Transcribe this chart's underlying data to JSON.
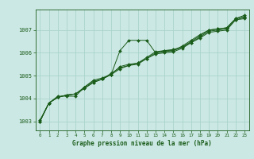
{
  "title": "Graphe pression niveau de la mer (hPa)",
  "bg_color": "#cce8e4",
  "grid_color": "#aad4cc",
  "line_color": "#1a5c1a",
  "marker_color": "#1a5c1a",
  "xlim": [
    -0.5,
    23.5
  ],
  "ylim": [
    1002.6,
    1007.9
  ],
  "yticks": [
    1003,
    1004,
    1005,
    1006,
    1007
  ],
  "xticks": [
    0,
    1,
    2,
    3,
    4,
    5,
    6,
    7,
    8,
    9,
    10,
    11,
    12,
    13,
    14,
    15,
    16,
    17,
    18,
    19,
    20,
    21,
    22,
    23
  ],
  "series": [
    [
      1003.0,
      1003.8,
      1004.1,
      1004.1,
      1004.1,
      1004.5,
      1004.8,
      1004.9,
      1005.05,
      1006.1,
      1006.55,
      1006.55,
      1006.55,
      1006.0,
      1006.1,
      1006.1,
      1006.3,
      1006.55,
      1006.8,
      1007.0,
      1007.05,
      1007.1,
      1007.5,
      1007.65
    ],
    [
      1003.0,
      1003.8,
      1004.05,
      1004.15,
      1004.2,
      1004.5,
      1004.75,
      1004.85,
      1005.05,
      1005.4,
      1005.5,
      1005.55,
      1005.8,
      1006.05,
      1006.1,
      1006.15,
      1006.25,
      1006.5,
      1006.75,
      1007.0,
      1007.05,
      1007.1,
      1007.5,
      1007.6
    ],
    [
      1003.0,
      1003.8,
      1004.05,
      1004.15,
      1004.2,
      1004.45,
      1004.7,
      1004.85,
      1005.1,
      1005.35,
      1005.45,
      1005.55,
      1005.75,
      1006.0,
      1006.05,
      1006.1,
      1006.25,
      1006.45,
      1006.7,
      1006.95,
      1007.0,
      1007.05,
      1007.45,
      1007.55
    ],
    [
      1003.05,
      1003.8,
      1004.05,
      1004.15,
      1004.2,
      1004.45,
      1004.7,
      1004.85,
      1005.05,
      1005.3,
      1005.45,
      1005.5,
      1005.75,
      1005.95,
      1006.0,
      1006.05,
      1006.2,
      1006.45,
      1006.65,
      1006.9,
      1006.95,
      1007.0,
      1007.45,
      1007.5
    ]
  ]
}
